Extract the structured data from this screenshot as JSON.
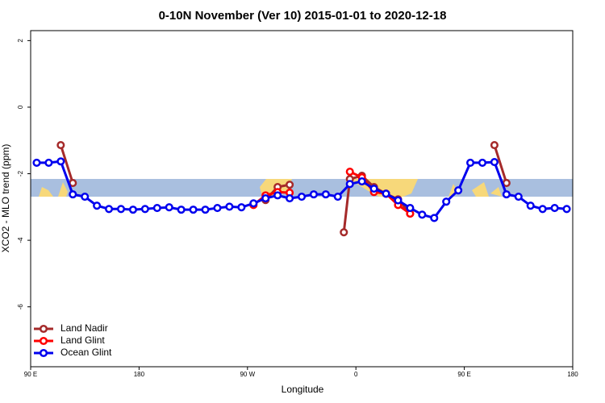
{
  "chart_data": {
    "type": "line",
    "title": "0-10N November (Ver 10)   2015-01-01 to 2020-12-18",
    "x_label": "Longitude",
    "y_label": "XCO2 - MLO trend (ppm)",
    "xlim": [
      90,
      540
    ],
    "ylim": [
      -7.8,
      2.3
    ],
    "xticks": [
      {
        "value": 90,
        "label": "90 E"
      },
      180,
      {
        "value": 270,
        "label": "90 W"
      },
      {
        "value": 360,
        "label": "0"
      },
      {
        "value": 450,
        "label": "90 E"
      },
      {
        "value": 540,
        "label": "180"
      }
    ],
    "yticks": [
      2,
      0,
      -2,
      -4,
      -6
    ],
    "legend": "bottom-left",
    "series": [
      {
        "name": "Land Nadir",
        "color": "#a52a2a",
        "x": [
          115,
          125,
          135,
          285,
          295,
          305,
          315,
          350,
          355,
          365,
          375,
          385,
          395,
          405,
          415,
          475,
          485
        ],
        "values": [
          -1.14,
          -2.28,
          null,
          -2.79,
          -2.4,
          -2.33,
          null,
          -3.76,
          -2.16,
          -2.06,
          -2.4,
          -2.6,
          -2.77,
          -3.2,
          null,
          -1.14,
          -2.28
        ]
      },
      {
        "name": "Land Glint",
        "color": "#ff0000",
        "x": [
          275,
          285,
          295,
          305,
          315,
          355,
          365,
          375,
          385,
          395,
          405
        ],
        "values": [
          -2.94,
          -2.65,
          -2.55,
          -2.57,
          null,
          -1.94,
          -2.11,
          -2.55,
          -2.6,
          -2.94,
          -3.2
        ]
      },
      {
        "name": "Ocean Glint",
        "color": "#0000ee",
        "x": [
          95,
          105,
          115,
          125,
          135,
          145,
          155,
          165,
          175,
          185,
          195,
          205,
          215,
          225,
          235,
          245,
          255,
          265,
          275,
          285,
          295,
          305,
          315,
          325,
          335,
          345,
          355,
          365,
          375,
          385,
          395,
          405,
          415,
          425,
          435,
          445,
          455,
          465,
          475,
          485,
          495,
          505,
          515,
          525,
          535
        ],
        "values": [
          -1.67,
          -1.67,
          -1.63,
          -2.62,
          -2.69,
          -2.96,
          -3.06,
          -3.06,
          -3.08,
          -3.06,
          -3.03,
          -3.01,
          -3.08,
          -3.08,
          -3.08,
          -3.03,
          -2.99,
          -3.01,
          -2.89,
          -2.74,
          -2.65,
          -2.74,
          -2.69,
          -2.62,
          -2.62,
          -2.69,
          -2.31,
          -2.23,
          -2.45,
          -2.6,
          -2.8,
          -3.03,
          -3.23,
          -3.33,
          -2.84,
          -2.5,
          -1.67,
          -1.67,
          -1.65,
          -2.62,
          -2.69,
          -2.96,
          -3.06,
          -3.03,
          -3.06
        ]
      }
    ]
  }
}
